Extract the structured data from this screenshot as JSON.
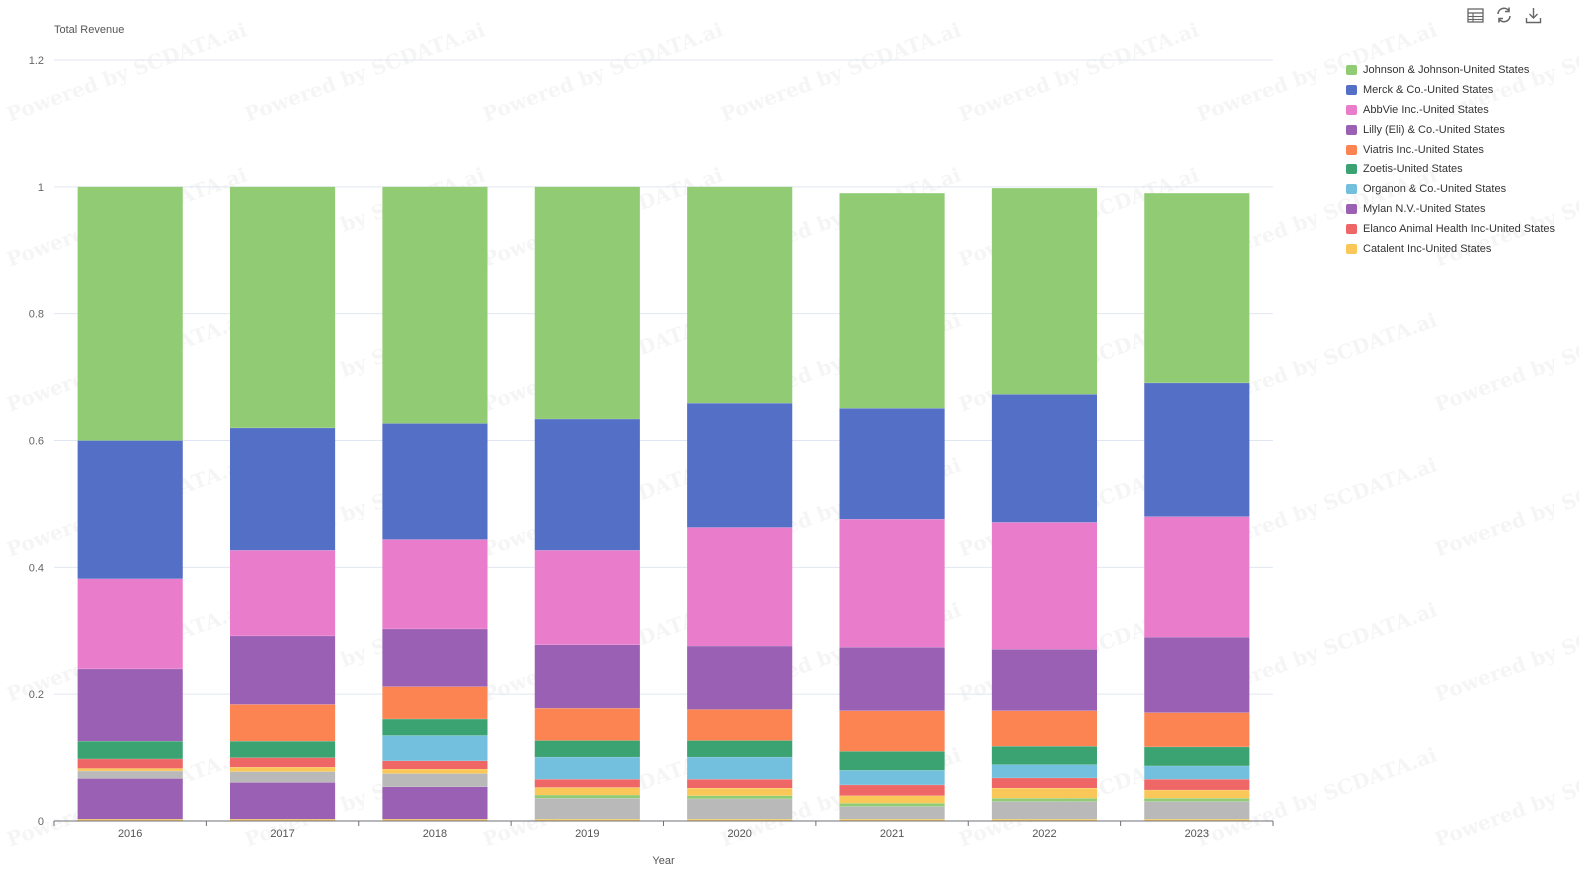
{
  "toolbar": {
    "icons": [
      "table-icon",
      "refresh-icon",
      "download-icon"
    ]
  },
  "watermark": "Powered by SCDATA.ai",
  "chart_data": {
    "type": "bar",
    "stacked": true,
    "title": "",
    "ylabel": "Total Revenue",
    "xlabel": "Year",
    "ylim": [
      0,
      1.2
    ],
    "yticks": [
      "0",
      "0.2",
      "0.4",
      "0.6",
      "0.8",
      "1",
      "1.2"
    ],
    "grid": true,
    "legend_position": "right",
    "categories": [
      "2016",
      "2017",
      "2018",
      "2019",
      "2020",
      "2021",
      "2022",
      "2023"
    ],
    "series": [
      {
        "name": "Catalent Inc-United States",
        "color": "#fac858",
        "values": [
          0.003,
          0.003,
          0.003,
          0.003,
          0.003,
          0.003,
          0.003,
          0.003
        ]
      },
      {
        "name": "",
        "color": "#b9b9b9",
        "values": [
          0,
          0,
          0,
          0.033,
          0.032,
          0.02,
          0.028,
          0.028
        ]
      },
      {
        "name": "Mylan N.V.-United States",
        "color": "#9a60b4",
        "values": [
          0.064,
          0.058,
          0.051,
          0,
          0,
          0,
          0,
          0
        ]
      },
      {
        "name": "",
        "color": "#b9b9b9",
        "values": [
          0.012,
          0.017,
          0.021,
          0,
          0,
          0,
          0,
          0
        ]
      },
      {
        "name": "",
        "color": "#91cc75",
        "values": [
          0,
          0,
          0,
          0.005,
          0.005,
          0.005,
          0.005,
          0.005
        ]
      },
      {
        "name": "",
        "color": "#fac858",
        "values": [
          0.004,
          0.007,
          0.007,
          0.012,
          0.012,
          0.012,
          0.016,
          0.013
        ]
      },
      {
        "name": "Elanco Animal Health Inc-United States",
        "color": "#ee6666",
        "values": [
          0.015,
          0.015,
          0.013,
          0.013,
          0.014,
          0.017,
          0.016,
          0.017
        ]
      },
      {
        "name": "Organon & Co.-United States",
        "color": "#73c0de",
        "values": [
          0,
          0,
          0.04,
          0.035,
          0.035,
          0.023,
          0.021,
          0.021
        ]
      },
      {
        "name": "Zoetis-United States",
        "color": "#3ba272",
        "values": [
          0.028,
          0.026,
          0.026,
          0.026,
          0.026,
          0.03,
          0.029,
          0.03
        ]
      },
      {
        "name": "Viatris Inc.-United States",
        "color": "#fc8452",
        "values": [
          0,
          0.058,
          0.051,
          0.051,
          0.049,
          0.064,
          0.056,
          0.054
        ]
      },
      {
        "name": "Lilly (Eli) & Co.-United States",
        "color": "#9a60b4",
        "values": [
          0.114,
          0.108,
          0.091,
          0.1,
          0.1,
          0.1,
          0.097,
          0.119
        ]
      },
      {
        "name": "AbbVie Inc.-United States",
        "color": "#ea7ccc",
        "values": [
          0.142,
          0.135,
          0.141,
          0.149,
          0.187,
          0.202,
          0.2,
          0.19
        ]
      },
      {
        "name": "Merck & Co.-United States",
        "color": "#5470c6",
        "values": [
          0.218,
          0.193,
          0.183,
          0.207,
          0.196,
          0.175,
          0.202,
          0.211
        ]
      },
      {
        "name": "Johnson & Johnson-United States",
        "color": "#91cc75",
        "values": [
          0.4,
          0.38,
          0.373,
          0.366,
          0.341,
          0.339,
          0.325,
          0.299
        ]
      }
    ],
    "legend": [
      {
        "name": "Johnson & Johnson-United States",
        "color": "#91cc75"
      },
      {
        "name": "Merck & Co.-United States",
        "color": "#5470c6"
      },
      {
        "name": "AbbVie Inc.-United States",
        "color": "#ea7ccc"
      },
      {
        "name": "Lilly (Eli) & Co.-United States",
        "color": "#9a60b4"
      },
      {
        "name": "Viatris Inc.-United States",
        "color": "#fc8452"
      },
      {
        "name": "Zoetis-United States",
        "color": "#3ba272"
      },
      {
        "name": "Organon & Co.-United States",
        "color": "#73c0de"
      },
      {
        "name": "Mylan N.V.-United States",
        "color": "#9a60b4"
      },
      {
        "name": "Elanco Animal Health Inc-United States",
        "color": "#ee6666"
      },
      {
        "name": "Catalent Inc-United States",
        "color": "#fac858"
      }
    ]
  }
}
